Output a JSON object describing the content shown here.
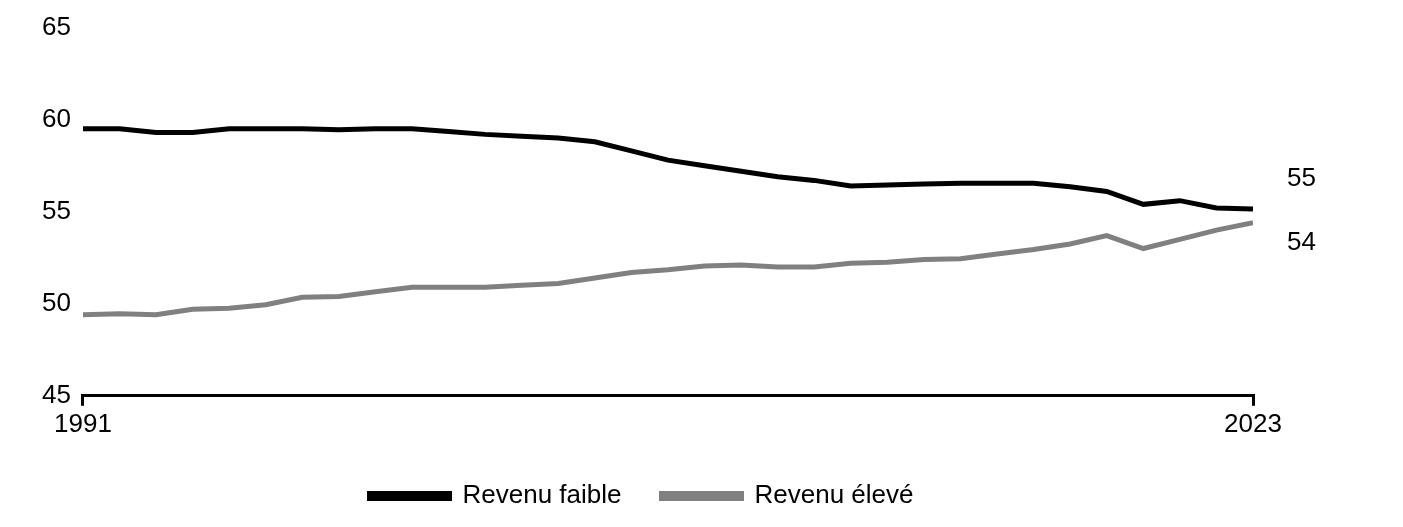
{
  "chart_data": {
    "type": "line",
    "x": [
      1991,
      1992,
      1993,
      1994,
      1995,
      1996,
      1997,
      1998,
      1999,
      2000,
      2001,
      2002,
      2003,
      2004,
      2005,
      2006,
      2007,
      2008,
      2009,
      2010,
      2011,
      2012,
      2013,
      2014,
      2015,
      2016,
      2017,
      2018,
      2019,
      2020,
      2021,
      2022,
      2023
    ],
    "series": [
      {
        "name": "Revenu faible",
        "color": "#000000",
        "values": [
          59.5,
          59.5,
          59.3,
          59.3,
          59.5,
          59.5,
          59.5,
          59.45,
          59.5,
          59.5,
          59.35,
          59.2,
          59.1,
          59.0,
          58.8,
          58.3,
          57.8,
          57.5,
          57.2,
          56.9,
          56.7,
          56.4,
          56.45,
          56.5,
          56.55,
          56.55,
          56.55,
          56.35,
          56.1,
          55.4,
          55.6,
          55.2,
          55.15
        ],
        "value_labels": [
          null,
          null,
          null,
          null,
          null,
          null,
          null,
          null,
          null,
          null,
          null,
          null,
          null,
          null,
          null,
          null,
          null,
          null,
          null,
          null,
          null,
          null,
          null,
          null,
          null,
          null,
          null,
          null,
          null,
          null,
          null,
          null,
          "55"
        ]
      },
      {
        "name": "Revenu élevé",
        "color": "#808080",
        "values": [
          49.4,
          49.45,
          49.4,
          49.7,
          49.75,
          49.95,
          50.35,
          50.4,
          50.65,
          50.9,
          50.9,
          50.9,
          51.0,
          51.1,
          51.4,
          51.7,
          51.85,
          52.05,
          52.1,
          52.0,
          52.0,
          52.2,
          52.25,
          52.4,
          52.45,
          52.7,
          52.95,
          53.25,
          53.7,
          53.0,
          53.5,
          54.0,
          54.4
        ],
        "value_labels": [
          null,
          null,
          null,
          null,
          null,
          null,
          null,
          null,
          null,
          null,
          null,
          null,
          null,
          null,
          null,
          null,
          null,
          null,
          null,
          null,
          null,
          null,
          null,
          null,
          null,
          null,
          null,
          null,
          null,
          null,
          null,
          null,
          "54"
        ]
      }
    ],
    "xlim": [
      1991,
      2023
    ],
    "xticks": [
      1991,
      2023
    ],
    "ylim": [
      45,
      65
    ],
    "yticks": [
      45,
      50,
      55,
      60,
      65
    ],
    "grid": false,
    "legend": "bottom"
  }
}
